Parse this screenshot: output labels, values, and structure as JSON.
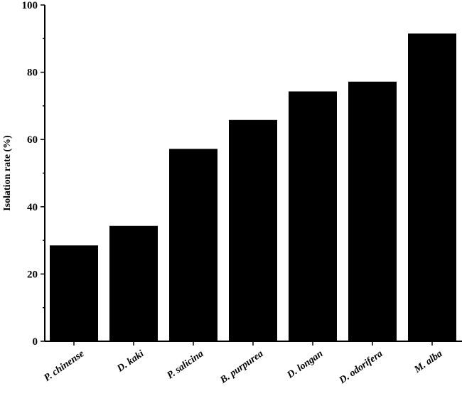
{
  "chart_data": {
    "type": "bar",
    "title": "",
    "xlabel": "",
    "ylabel": "Isolation rate (%)",
    "ylim": [
      0,
      100
    ],
    "yticks": [
      0,
      20,
      40,
      60,
      80,
      100
    ],
    "grid": false,
    "legend": "none",
    "bar_color": "#000000",
    "categories": [
      "P. chinense",
      "D. kaki",
      "P. salicina",
      "B. purpurea",
      "D. longan",
      "D. odorifera",
      "M. alba"
    ],
    "values": [
      28.5,
      34.3,
      57.2,
      65.8,
      74.3,
      77.2,
      91.5
    ]
  }
}
